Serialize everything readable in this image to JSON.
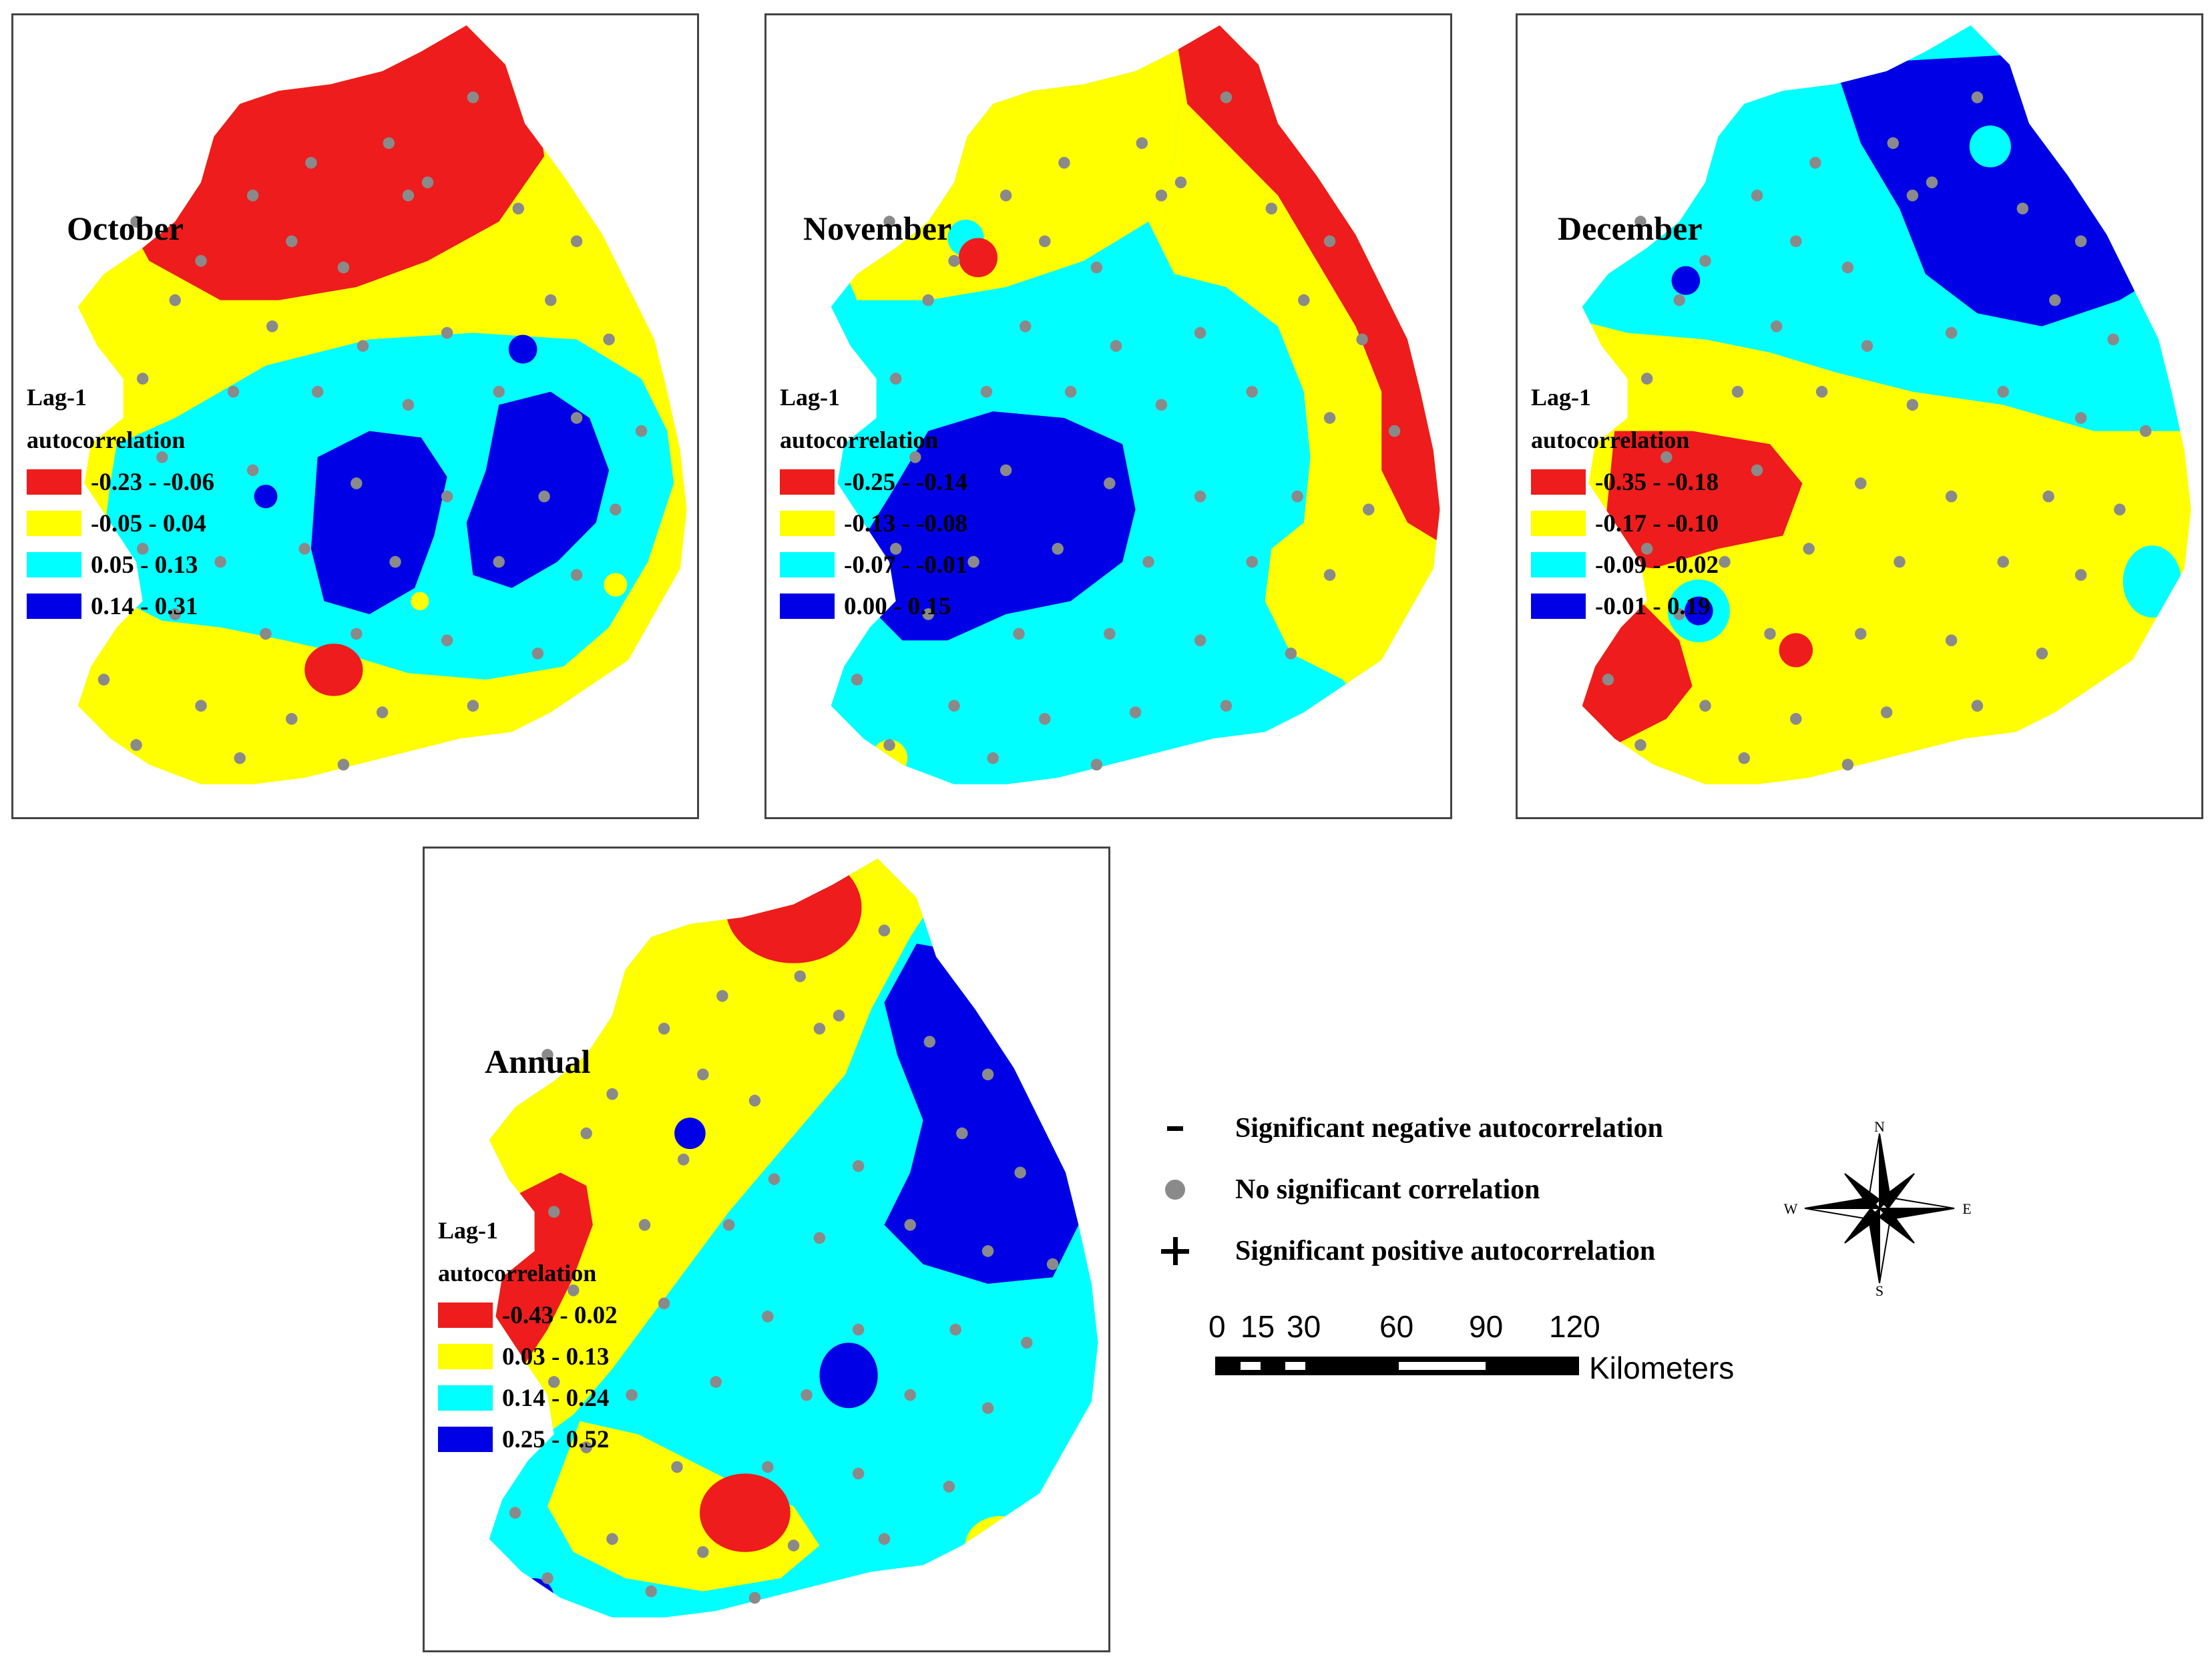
{
  "panels": [
    {
      "id": "october",
      "title": "October",
      "legend_title_1": "Lag-1",
      "legend_title_2": "autocorrelation",
      "classes": [
        {
          "label": "-0.23 - -0.06",
          "color": "#ee1c1c"
        },
        {
          "label": "-0.05 - 0.04",
          "color": "#ffff00"
        },
        {
          "label": "0.05 - 0.13",
          "color": "#00ffff"
        },
        {
          "label": "0.14 - 0.31",
          "color": "#0000e6"
        }
      ]
    },
    {
      "id": "november",
      "title": "November",
      "legend_title_1": "Lag-1",
      "legend_title_2": "autocorrelation",
      "classes": [
        {
          "label": "-0.25 - -0.14",
          "color": "#ee1c1c"
        },
        {
          "label": "-0.13 - -0.08",
          "color": "#ffff00"
        },
        {
          "label": "-0.07 - -0.01",
          "color": "#00ffff"
        },
        {
          "label": "0.00 - 0.15",
          "color": "#0000e6"
        }
      ]
    },
    {
      "id": "december",
      "title": "December",
      "legend_title_1": "Lag-1",
      "legend_title_2": "autocorrelation",
      "classes": [
        {
          "label": "-0.35 - -0.18",
          "color": "#ee1c1c"
        },
        {
          "label": "-0.17 - -0.10",
          "color": "#ffff00"
        },
        {
          "label": "-0.09 - -0.02",
          "color": "#00ffff"
        },
        {
          "label": "-0.01 - 0.19",
          "color": "#0000e6"
        }
      ]
    },
    {
      "id": "annual",
      "title": "Annual",
      "legend_title_1": "Lag-1",
      "legend_title_2": "autocorrelation",
      "classes": [
        {
          "label": "-0.43 - 0.02",
          "color": "#ee1c1c"
        },
        {
          "label": "0.03 - 0.13",
          "color": "#ffff00"
        },
        {
          "label": "0.14 - 0.24",
          "color": "#00ffff"
        },
        {
          "label": "0.25 - 0.52",
          "color": "#0000e6"
        }
      ]
    }
  ],
  "symbol_legend": [
    {
      "symbol": "minus",
      "label": "Significant negative autocorrelation"
    },
    {
      "symbol": "dot",
      "label": "No significant correlation"
    },
    {
      "symbol": "plus",
      "label": "Significant positive autocorrelation"
    }
  ],
  "compass": {
    "n": "N",
    "s": "S",
    "e": "E",
    "w": "W"
  },
  "scale_bar": {
    "ticks": [
      "0",
      "15",
      "30",
      "60",
      "90",
      "120"
    ],
    "unit": "Kilometers"
  }
}
